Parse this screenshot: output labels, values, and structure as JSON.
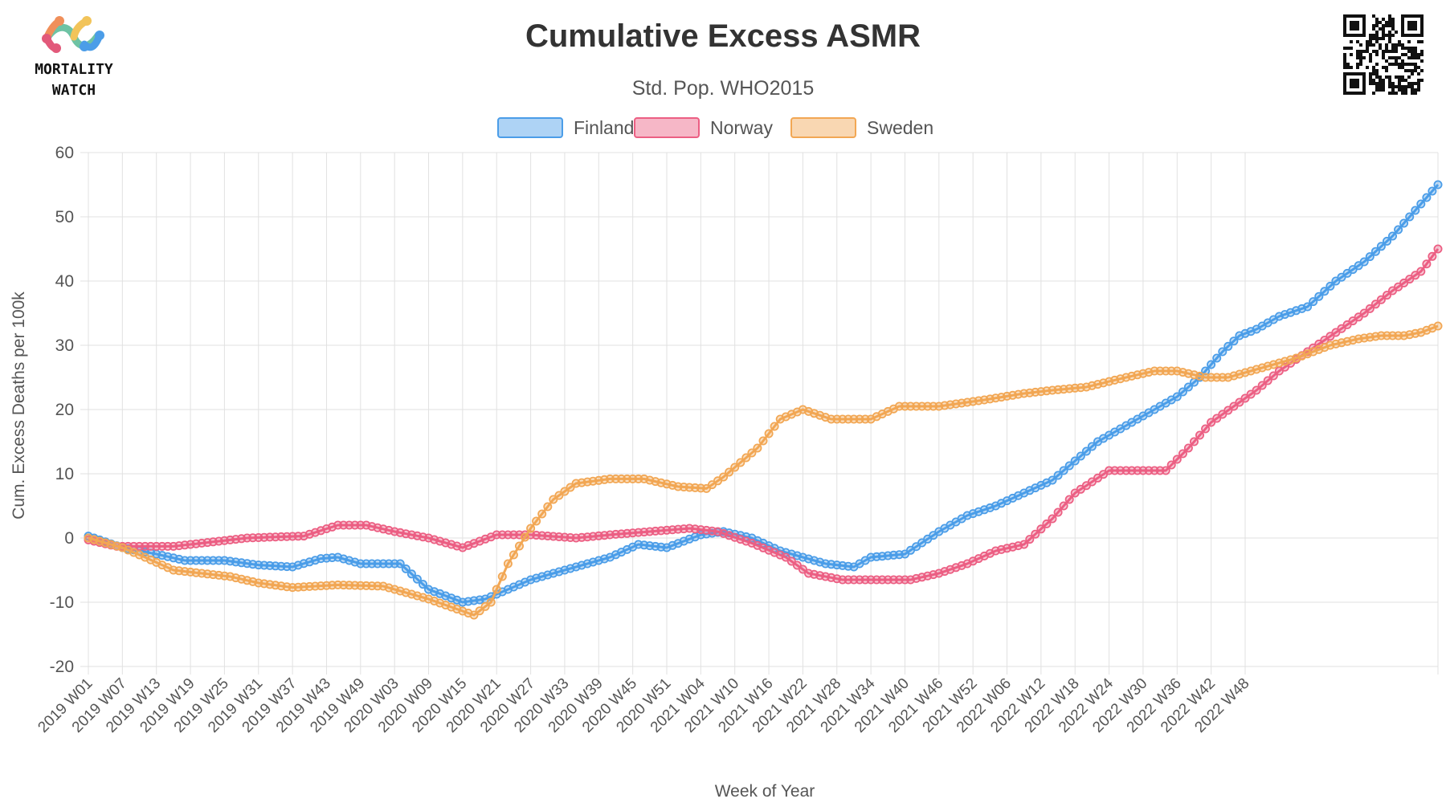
{
  "logo": {
    "line1": "MORTALITY",
    "line2": "WATCH"
  },
  "colors": {
    "Finland": "#4b9de8",
    "Norway": "#ec5f83",
    "Sweden": "#f2a754",
    "grid": "#e1e1e1",
    "text": "#333333"
  },
  "chart_data": {
    "type": "line",
    "title": "Cumulative Excess ASMR",
    "subtitle": "Std. Pop. WHO2015",
    "xlabel": "Week of Year",
    "ylabel": "Cum. Excess Deaths per 100k",
    "ylim": [
      -20,
      60
    ],
    "yticks": [
      -20,
      -10,
      0,
      10,
      20,
      30,
      40,
      50,
      60
    ],
    "grid": true,
    "legend": "top-center",
    "x_start": {
      "year": 2019,
      "week": 1
    },
    "x_tick_labels": [
      "2019 W01",
      "2019 W07",
      "2019 W13",
      "2019 W19",
      "2019 W25",
      "2019 W31",
      "2019 W37",
      "2019 W43",
      "2019 W49",
      "2020 W03",
      "2020 W09",
      "2020 W15",
      "2020 W21",
      "2020 W27",
      "2020 W33",
      "2020 W39",
      "2020 W45",
      "2020 W51",
      "2021 W04",
      "2021 W10",
      "2021 W16",
      "2021 W22",
      "2021 W28",
      "2021 W34",
      "2021 W40",
      "2021 W46",
      "2021 W52",
      "2022 W06",
      "2022 W12",
      "2022 W18",
      "2022 W24",
      "2022 W30",
      "2022 W36",
      "2022 W42",
      "2022 W48"
    ],
    "series": [
      {
        "name": "Finland",
        "color": "#4b9de8",
        "anchors": [
          [
            0,
            0.3
          ],
          [
            6,
            -1.5
          ],
          [
            12,
            -2.5
          ],
          [
            17,
            -3.5
          ],
          [
            24,
            -3.5
          ],
          [
            30,
            -4.2
          ],
          [
            36,
            -4.5
          ],
          [
            41,
            -3.2
          ],
          [
            44,
            -3.0
          ],
          [
            48,
            -4.0
          ],
          [
            55,
            -4.0
          ],
          [
            60,
            -8
          ],
          [
            66,
            -10
          ],
          [
            70,
            -9.5
          ],
          [
            78,
            -6.5
          ],
          [
            84,
            -5
          ],
          [
            92,
            -3
          ],
          [
            97,
            -1
          ],
          [
            102,
            -1.5
          ],
          [
            108,
            0.5
          ],
          [
            112,
            1
          ],
          [
            117,
            0
          ],
          [
            122,
            -2
          ],
          [
            130,
            -4
          ],
          [
            135,
            -4.5
          ],
          [
            138,
            -3
          ],
          [
            144,
            -2.5
          ],
          [
            150,
            1
          ],
          [
            155,
            3.5
          ],
          [
            160,
            5
          ],
          [
            165,
            7
          ],
          [
            170,
            9
          ],
          [
            174,
            12
          ],
          [
            178,
            15
          ],
          [
            183,
            17.5
          ],
          [
            188,
            20
          ],
          [
            192,
            22
          ],
          [
            196,
            25
          ],
          [
            200,
            29
          ],
          [
            203,
            31.5
          ],
          [
            206,
            32.5
          ],
          [
            210,
            34.5
          ],
          [
            215,
            36
          ],
          [
            220,
            40
          ],
          [
            225,
            43
          ],
          [
            230,
            47
          ],
          [
            234,
            51
          ],
          [
            238,
            55
          ]
        ]
      },
      {
        "name": "Norway",
        "color": "#ec5f83",
        "anchors": [
          [
            0,
            -0.3
          ],
          [
            5,
            -1.3
          ],
          [
            10,
            -1.3
          ],
          [
            15,
            -1.3
          ],
          [
            21,
            -0.7
          ],
          [
            28,
            0
          ],
          [
            34,
            0.2
          ],
          [
            38,
            0.3
          ],
          [
            44,
            2
          ],
          [
            49,
            2
          ],
          [
            54,
            1
          ],
          [
            60,
            0
          ],
          [
            66,
            -1.5
          ],
          [
            72,
            0.5
          ],
          [
            78,
            0.5
          ],
          [
            86,
            0
          ],
          [
            92,
            0.5
          ],
          [
            99,
            1
          ],
          [
            106,
            1.5
          ],
          [
            111,
            1
          ],
          [
            117,
            -0.8
          ],
          [
            123,
            -3
          ],
          [
            127,
            -5.5
          ],
          [
            133,
            -6.5
          ],
          [
            140,
            -6.5
          ],
          [
            145,
            -6.5
          ],
          [
            150,
            -5.5
          ],
          [
            155,
            -4
          ],
          [
            160,
            -2
          ],
          [
            165,
            -1
          ],
          [
            170,
            3
          ],
          [
            174,
            7
          ],
          [
            180,
            10.5
          ],
          [
            185,
            10.5
          ],
          [
            190,
            10.5
          ],
          [
            194,
            14
          ],
          [
            198,
            18
          ],
          [
            202,
            20.5
          ],
          [
            206,
            23
          ],
          [
            210,
            26
          ],
          [
            215,
            29
          ],
          [
            220,
            32
          ],
          [
            225,
            35
          ],
          [
            230,
            38.5
          ],
          [
            235,
            41.5
          ],
          [
            238,
            45
          ]
        ]
      },
      {
        "name": "Sweden",
        "color": "#f2a754",
        "anchors": [
          [
            0,
            0
          ],
          [
            6,
            -1.5
          ],
          [
            10,
            -3
          ],
          [
            15,
            -5
          ],
          [
            25,
            -6
          ],
          [
            30,
            -7
          ],
          [
            36,
            -7.7
          ],
          [
            44,
            -7.3
          ],
          [
            52,
            -7.5
          ],
          [
            60,
            -9.5
          ],
          [
            68,
            -12
          ],
          [
            71,
            -10
          ],
          [
            74,
            -4
          ],
          [
            78,
            1.5
          ],
          [
            82,
            6
          ],
          [
            86,
            8.5
          ],
          [
            92,
            9.2
          ],
          [
            98,
            9.2
          ],
          [
            104,
            8
          ],
          [
            109,
            7.7
          ],
          [
            112,
            9.5
          ],
          [
            118,
            14
          ],
          [
            122,
            18.5
          ],
          [
            126,
            20
          ],
          [
            131,
            18.5
          ],
          [
            138,
            18.5
          ],
          [
            143,
            20.5
          ],
          [
            150,
            20.5
          ],
          [
            158,
            21.5
          ],
          [
            165,
            22.5
          ],
          [
            170,
            23
          ],
          [
            176,
            23.5
          ],
          [
            183,
            25
          ],
          [
            188,
            26
          ],
          [
            192,
            26
          ],
          [
            197,
            25
          ],
          [
            201,
            25
          ],
          [
            205,
            26
          ],
          [
            209,
            27
          ],
          [
            213,
            28
          ],
          [
            219,
            30
          ],
          [
            224,
            31
          ],
          [
            228,
            31.5
          ],
          [
            232,
            31.5
          ],
          [
            235,
            32
          ],
          [
            238,
            33
          ]
        ]
      }
    ]
  }
}
